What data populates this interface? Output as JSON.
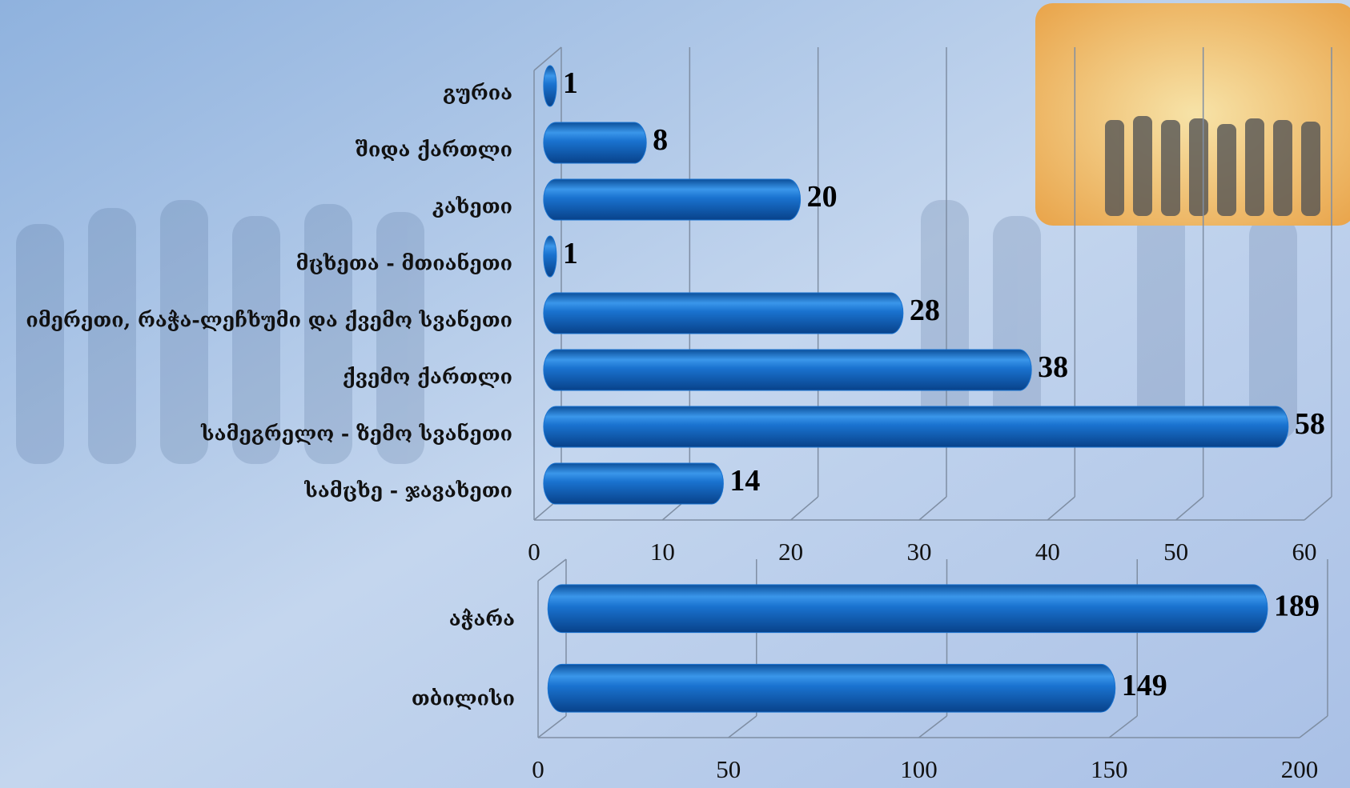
{
  "chart_data": [
    {
      "type": "bar",
      "categories": [
        "გურია",
        "შიდა ქართლი",
        "კახეთი",
        "მცხეთა - მთიანეთი",
        "იმერეთი, რაჭა-ლეჩხუმი და ქვემო სვანეთი",
        "ქვემო ქართლი",
        "სამეგრელო - ზემო სვანეთი",
        "სამცხე - ჯავახეთი"
      ],
      "values": [
        1,
        8,
        20,
        1,
        28,
        38,
        58,
        14
      ],
      "color": "#1a73d0",
      "xlim": [
        0,
        60
      ],
      "xticks": [
        0,
        10,
        20,
        30,
        40,
        50,
        60
      ],
      "grid": true
    },
    {
      "type": "bar",
      "categories": [
        "აჭარა",
        "თბილისი"
      ],
      "values": [
        189,
        149
      ],
      "color": "#1a73d0",
      "xlim": [
        0,
        200
      ],
      "xticks": [
        0,
        50,
        100,
        150,
        200
      ],
      "grid": true
    }
  ]
}
